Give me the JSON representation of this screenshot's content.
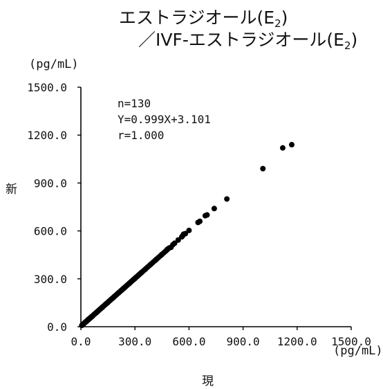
{
  "chart_data": {
    "type": "scatter",
    "title_line1": "エストラジオール(E",
    "title_line1_sub": "2",
    "title_line1_end": ")",
    "title_line2": "／IVF-エストラジオール(E",
    "title_line2_sub": "2",
    "title_line2_end": ")",
    "xlabel": "現",
    "ylabel": "新",
    "x_unit": "(pg/mL)",
    "y_unit": "(pg/mL)",
    "xlim": [
      0,
      1500
    ],
    "ylim": [
      0,
      1500
    ],
    "xticks": [
      "0.0",
      "300.0",
      "600.0",
      "900.0",
      "1200.0",
      "1500.0"
    ],
    "yticks": [
      "0.0",
      "300.0",
      "600.0",
      "900.0",
      "1200.0",
      "1500.0"
    ],
    "stats": [
      "n=130",
      "Y=0.999X+3.101",
      "r=1.000"
    ],
    "grid": false,
    "legend": "none",
    "marker_color": "#000000",
    "points": [
      [
        5,
        8
      ],
      [
        8,
        11
      ],
      [
        10,
        14
      ],
      [
        12,
        15
      ],
      [
        15,
        18
      ],
      [
        18,
        21
      ],
      [
        20,
        24
      ],
      [
        22,
        25
      ],
      [
        25,
        28
      ],
      [
        28,
        31
      ],
      [
        30,
        33
      ],
      [
        32,
        36
      ],
      [
        35,
        38
      ],
      [
        38,
        41
      ],
      [
        40,
        44
      ],
      [
        42,
        45
      ],
      [
        45,
        48
      ],
      [
        48,
        51
      ],
      [
        50,
        53
      ],
      [
        52,
        55
      ],
      [
        55,
        58
      ],
      [
        58,
        61
      ],
      [
        60,
        63
      ],
      [
        65,
        68
      ],
      [
        70,
        73
      ],
      [
        75,
        78
      ],
      [
        80,
        83
      ],
      [
        85,
        88
      ],
      [
        90,
        93
      ],
      [
        95,
        98
      ],
      [
        100,
        103
      ],
      [
        105,
        108
      ],
      [
        110,
        113
      ],
      [
        115,
        118
      ],
      [
        120,
        123
      ],
      [
        125,
        128
      ],
      [
        130,
        133
      ],
      [
        135,
        138
      ],
      [
        140,
        143
      ],
      [
        145,
        148
      ],
      [
        150,
        153
      ],
      [
        155,
        158
      ],
      [
        160,
        163
      ],
      [
        165,
        168
      ],
      [
        170,
        173
      ],
      [
        175,
        178
      ],
      [
        180,
        183
      ],
      [
        185,
        188
      ],
      [
        190,
        193
      ],
      [
        195,
        198
      ],
      [
        200,
        203
      ],
      [
        205,
        208
      ],
      [
        210,
        213
      ],
      [
        215,
        218
      ],
      [
        220,
        223
      ],
      [
        225,
        228
      ],
      [
        230,
        233
      ],
      [
        235,
        238
      ],
      [
        240,
        243
      ],
      [
        245,
        248
      ],
      [
        250,
        253
      ],
      [
        255,
        258
      ],
      [
        260,
        263
      ],
      [
        265,
        268
      ],
      [
        270,
        273
      ],
      [
        275,
        278
      ],
      [
        280,
        283
      ],
      [
        285,
        288
      ],
      [
        290,
        293
      ],
      [
        295,
        298
      ],
      [
        300,
        303
      ],
      [
        305,
        308
      ],
      [
        310,
        313
      ],
      [
        315,
        318
      ],
      [
        320,
        323
      ],
      [
        325,
        328
      ],
      [
        330,
        333
      ],
      [
        335,
        338
      ],
      [
        340,
        343
      ],
      [
        350,
        353
      ],
      [
        360,
        363
      ],
      [
        370,
        373
      ],
      [
        380,
        383
      ],
      [
        390,
        393
      ],
      [
        400,
        403
      ],
      [
        410,
        413
      ],
      [
        420,
        423
      ],
      [
        430,
        433
      ],
      [
        440,
        443
      ],
      [
        450,
        453
      ],
      [
        460,
        463
      ],
      [
        470,
        473
      ],
      [
        480,
        485
      ],
      [
        490,
        493
      ],
      [
        500,
        497
      ],
      [
        510,
        513
      ],
      [
        520,
        523
      ],
      [
        540,
        543
      ],
      [
        560,
        563
      ],
      [
        565,
        570
      ],
      [
        570,
        580
      ],
      [
        580,
        583
      ],
      [
        600,
        603
      ],
      [
        650,
        653
      ],
      [
        660,
        660
      ],
      [
        690,
        695
      ],
      [
        700,
        700
      ],
      [
        740,
        740
      ],
      [
        810,
        800
      ],
      [
        1010,
        990
      ],
      [
        1120,
        1120
      ],
      [
        1170,
        1140
      ],
      [
        12,
        14
      ],
      [
        28,
        30
      ],
      [
        42,
        46
      ],
      [
        62,
        64
      ],
      [
        88,
        90
      ],
      [
        118,
        120
      ],
      [
        148,
        150
      ],
      [
        178,
        180
      ],
      [
        208,
        211
      ],
      [
        238,
        240
      ],
      [
        268,
        270
      ],
      [
        298,
        300
      ],
      [
        328,
        331
      ],
      [
        358,
        360
      ],
      [
        388,
        391
      ],
      [
        418,
        421
      ],
      [
        448,
        451
      ],
      [
        478,
        481
      ]
    ]
  }
}
